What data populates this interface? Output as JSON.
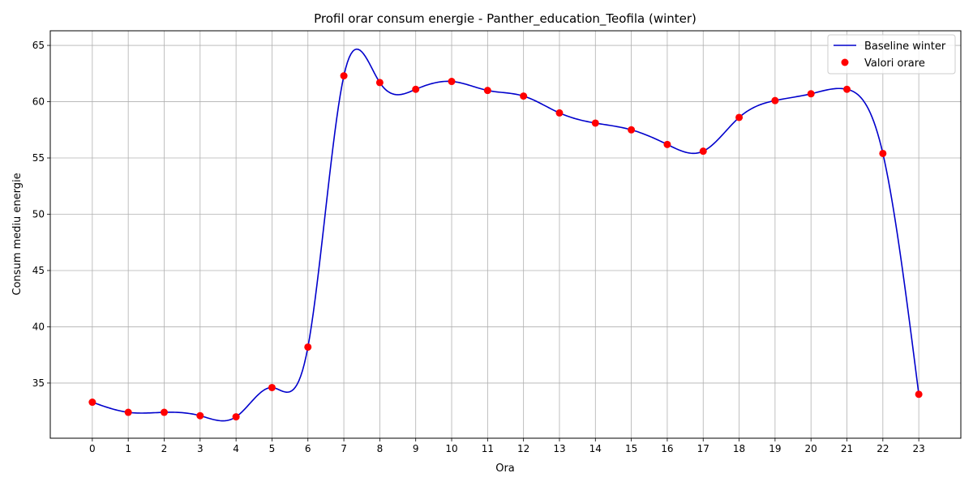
{
  "chart_data": {
    "type": "line",
    "title": "Profil orar consum energie - Panther_education_Teofila (winter)",
    "xlabel": "Ora",
    "ylabel": "Consum mediu energie",
    "x": [
      0,
      1,
      2,
      3,
      4,
      5,
      6,
      7,
      8,
      9,
      10,
      11,
      12,
      13,
      14,
      15,
      16,
      17,
      18,
      19,
      20,
      21,
      22,
      23
    ],
    "xlim": [
      -1.17,
      24.17
    ],
    "ylim": [
      30.1,
      66.3
    ],
    "yticks": [
      35,
      40,
      45,
      50,
      55,
      60,
      65
    ],
    "grid": true,
    "legend_position": "top-right",
    "series": [
      {
        "name": "Baseline winter",
        "kind": "line",
        "color": "#0000cc",
        "values": [
          33.3,
          32.4,
          32.4,
          32.1,
          32.0,
          34.6,
          38.2,
          62.3,
          61.7,
          61.1,
          61.8,
          61.0,
          60.5,
          59.0,
          58.1,
          57.5,
          56.2,
          55.6,
          58.6,
          60.1,
          60.7,
          61.1,
          55.4,
          34.0
        ]
      },
      {
        "name": "Valori orare",
        "kind": "scatter",
        "color": "#ff0000",
        "values": [
          33.3,
          32.4,
          32.4,
          32.1,
          32.0,
          34.6,
          38.2,
          62.3,
          61.7,
          61.1,
          61.8,
          61.0,
          60.5,
          59.0,
          58.1,
          57.5,
          56.2,
          55.6,
          58.6,
          60.1,
          60.7,
          61.1,
          55.4,
          34.0
        ]
      }
    ]
  }
}
